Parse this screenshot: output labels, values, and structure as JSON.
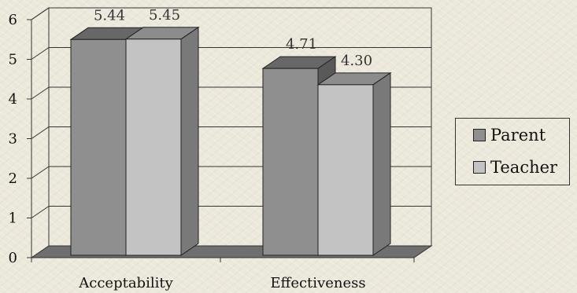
{
  "chart_data": {
    "type": "bar",
    "style": "3d-clustered",
    "categories": [
      "Acceptability",
      "Effectiveness"
    ],
    "series": [
      {
        "name": "Parent",
        "values": [
          5.44,
          4.71
        ],
        "labels": [
          "5.44",
          "4.71"
        ],
        "color": "#8f8f8f"
      },
      {
        "name": "Teacher",
        "values": [
          5.45,
          4.3
        ],
        "labels": [
          "5.45",
          "4.30"
        ],
        "color": "#c3c3c3"
      }
    ],
    "ylim": [
      0,
      6
    ],
    "yticks": [
      "0",
      "1",
      "2",
      "3",
      "4",
      "5",
      "6"
    ],
    "grid": true,
    "legend_position": "right"
  }
}
